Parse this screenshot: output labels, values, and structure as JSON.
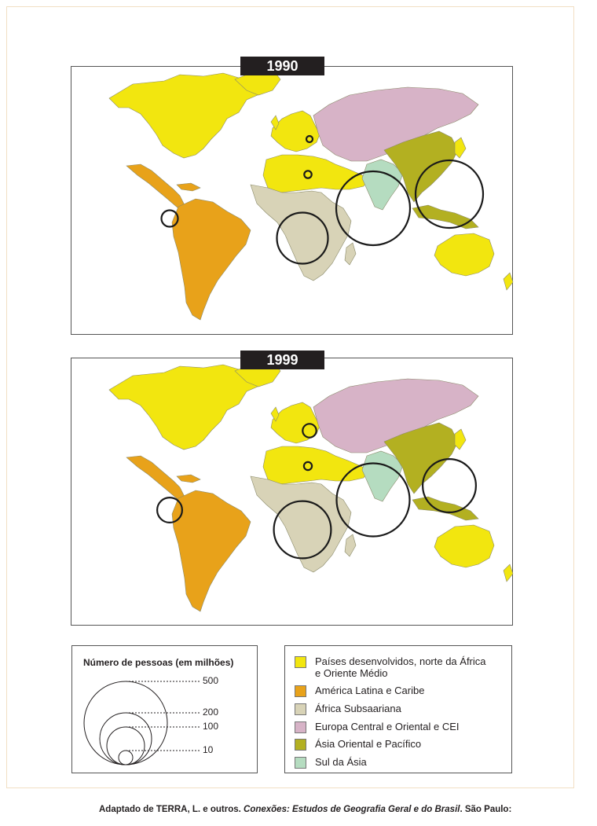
{
  "colors": {
    "developed": "#f2e60f",
    "latam": "#e8a21a",
    "subsaharan": "#d8d3b7",
    "europe_cei": "#d7b3c7",
    "east_asia": "#b3b021",
    "south_asia": "#b5dcc0"
  },
  "maps": [
    {
      "year": "1990",
      "bubbles": [
        {
          "region": "Europa Central e Oriental e CEI",
          "size_million": 2
        },
        {
          "region": "Países desenvolvidos, norte da África e Oriente Médio",
          "size_million": 5
        },
        {
          "region": "América Latina e Caribe",
          "size_million": 25
        },
        {
          "region": "África Subsaariana",
          "size_million": 240
        },
        {
          "region": "Sul da Ásia",
          "size_million": 500
        },
        {
          "region": "Ásia Oriental e Pacífico",
          "size_million": 420
        }
      ]
    },
    {
      "year": "1999",
      "bubbles": [
        {
          "region": "Europa Central e Oriental e CEI",
          "size_million": 17
        },
        {
          "region": "Países desenvolvidos, norte da África e Oriente Médio",
          "size_million": 6
        },
        {
          "region": "América Latina e Caribe",
          "size_million": 57
        },
        {
          "region": "África Subsaariana",
          "size_million": 300
        },
        {
          "region": "Sul da Ásia",
          "size_million": 490
        },
        {
          "region": "Ásia Oriental e Pacífico",
          "size_million": 260
        }
      ]
    }
  ],
  "size_legend": {
    "title": "Número de pessoas (em milhões)",
    "values": [
      "500",
      "200",
      "100",
      "10"
    ]
  },
  "color_legend": [
    {
      "label": "Países desenvolvidos, norte da África e Oriente Médio",
      "color": "#f2e60f"
    },
    {
      "label": "América Latina e Caribe",
      "color": "#e8a21a"
    },
    {
      "label": "África Subsaariana",
      "color": "#d8d3b7"
    },
    {
      "label": "Europa Central e Oriental e CEI",
      "color": "#d7b3c7"
    },
    {
      "label": "Ásia Oriental e Pacífico",
      "color": "#b3b021"
    },
    {
      "label": "Sul da Ásia",
      "color": "#b5dcc0"
    }
  ],
  "source": {
    "prefix": "Adaptado de TERRA, L. e outros. ",
    "title": "Conexões: Estudos de Geografia Geral e do Brasil",
    "suffix": ". São Paulo:"
  }
}
